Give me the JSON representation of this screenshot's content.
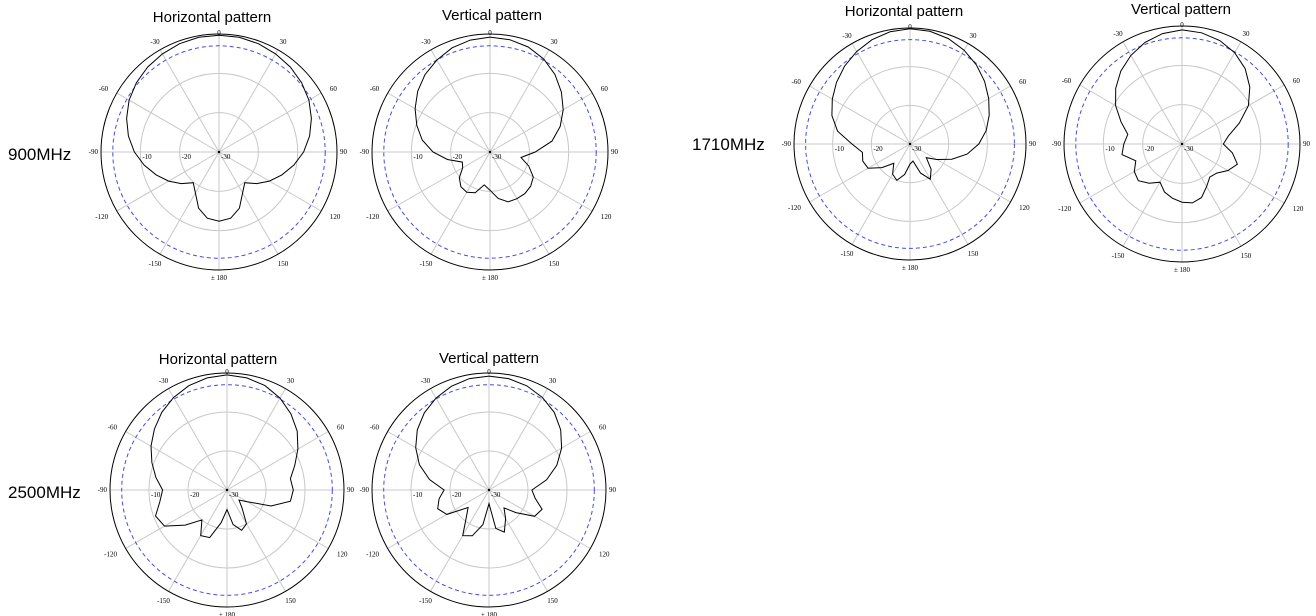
{
  "ring_labels": [
    "-10",
    "-20",
    "-30"
  ],
  "angle_labels": [
    {
      "angle": 0,
      "text": "0"
    },
    {
      "angle": 30,
      "text": "30"
    },
    {
      "angle": 60,
      "text": "60"
    },
    {
      "angle": 90,
      "text": "90"
    },
    {
      "angle": 120,
      "text": "120"
    },
    {
      "angle": 150,
      "text": "150"
    },
    {
      "angle": 180,
      "text": "± 180"
    },
    {
      "angle": -150,
      "text": "-150"
    },
    {
      "angle": -120,
      "text": "-120"
    },
    {
      "angle": -90,
      "text": "-90"
    },
    {
      "angle": -60,
      "text": "-60"
    },
    {
      "angle": -30,
      "text": "-30"
    }
  ],
  "colors": {
    "reference_circle": "#4a4ae6",
    "trace": "#000000",
    "grid": "#c8c8c8"
  },
  "chart_data": [
    {
      "type": "polar-line",
      "frequency": "900MHz",
      "title": "Horizontal pattern",
      "r_unit": "dB",
      "r_range": [
        -30,
        0
      ],
      "reference_level_db": -3,
      "pattern_points": [
        [
          0,
          -0.3
        ],
        [
          10,
          -0.4
        ],
        [
          20,
          -0.7
        ],
        [
          30,
          -1.2
        ],
        [
          40,
          -1.8
        ],
        [
          50,
          -2.6
        ],
        [
          60,
          -3.6
        ],
        [
          70,
          -5.0
        ],
        [
          80,
          -6.6
        ],
        [
          90,
          -8.5
        ],
        [
          100,
          -10.7
        ],
        [
          110,
          -13.0
        ],
        [
          120,
          -15.2
        ],
        [
          130,
          -17.5
        ],
        [
          140,
          -19.8
        ],
        [
          150,
          -18.0
        ],
        [
          160,
          -14.8
        ],
        [
          170,
          -12.9
        ],
        [
          180,
          -12.4
        ],
        [
          190,
          -12.9
        ],
        [
          200,
          -14.8
        ],
        [
          210,
          -18.0
        ],
        [
          220,
          -19.8
        ],
        [
          230,
          -17.5
        ],
        [
          240,
          -15.2
        ],
        [
          250,
          -13.0
        ],
        [
          260,
          -10.7
        ],
        [
          270,
          -8.5
        ],
        [
          280,
          -6.6
        ],
        [
          290,
          -5.0
        ],
        [
          300,
          -3.6
        ],
        [
          310,
          -2.6
        ],
        [
          320,
          -1.8
        ],
        [
          330,
          -1.2
        ],
        [
          340,
          -0.7
        ],
        [
          350,
          -0.4
        ]
      ]
    },
    {
      "type": "polar-line",
      "frequency": "900MHz",
      "title": "Vertical pattern",
      "r_unit": "dB",
      "r_range": [
        -30,
        0
      ],
      "reference_level_db": -3,
      "pattern_points": [
        [
          0,
          -0.8
        ],
        [
          10,
          -1.0
        ],
        [
          20,
          -1.6
        ],
        [
          30,
          -2.7
        ],
        [
          40,
          -4.3
        ],
        [
          50,
          -6.3
        ],
        [
          60,
          -8.5
        ],
        [
          70,
          -11.0
        ],
        [
          80,
          -14.0
        ],
        [
          90,
          -18.5
        ],
        [
          100,
          -22.0
        ],
        [
          110,
          -19.5
        ],
        [
          120,
          -17.3
        ],
        [
          130,
          -16.5
        ],
        [
          140,
          -16.2
        ],
        [
          150,
          -16.3
        ],
        [
          160,
          -16.5
        ],
        [
          170,
          -18.0
        ],
        [
          180,
          -20.3
        ],
        [
          190,
          -21.5
        ],
        [
          200,
          -19.0
        ],
        [
          210,
          -18.2
        ],
        [
          220,
          -18.5
        ],
        [
          230,
          -19.8
        ],
        [
          240,
          -22.0
        ],
        [
          250,
          -22.5
        ],
        [
          260,
          -19.0
        ],
        [
          270,
          -15.5
        ],
        [
          280,
          -12.5
        ],
        [
          290,
          -10.2
        ],
        [
          300,
          -8.0
        ],
        [
          310,
          -6.0
        ],
        [
          320,
          -4.3
        ],
        [
          330,
          -3.0
        ],
        [
          340,
          -1.8
        ],
        [
          350,
          -1.1
        ]
      ]
    },
    {
      "type": "polar-line",
      "frequency": "1710MHz",
      "title": "Horizontal pattern",
      "r_unit": "dB",
      "r_range": [
        -30,
        0
      ],
      "reference_level_db": -3,
      "pattern_points": [
        [
          0,
          -0.2
        ],
        [
          10,
          -0.4
        ],
        [
          20,
          -1.0
        ],
        [
          30,
          -2.0
        ],
        [
          40,
          -3.3
        ],
        [
          50,
          -4.8
        ],
        [
          60,
          -6.5
        ],
        [
          70,
          -8.2
        ],
        [
          80,
          -10.0
        ],
        [
          90,
          -12.2
        ],
        [
          100,
          -15.0
        ],
        [
          110,
          -18.5
        ],
        [
          120,
          -22.0
        ],
        [
          130,
          -24.5
        ],
        [
          140,
          -21.5
        ],
        [
          150,
          -19.5
        ],
        [
          160,
          -22.0
        ],
        [
          170,
          -25.5
        ],
        [
          180,
          -24.8
        ],
        [
          190,
          -22.0
        ],
        [
          200,
          -20.0
        ],
        [
          210,
          -21.0
        ],
        [
          220,
          -23.5
        ],
        [
          230,
          -20.5
        ],
        [
          240,
          -17.5
        ],
        [
          250,
          -17.0
        ],
        [
          260,
          -17.5
        ],
        [
          270,
          -15.0
        ],
        [
          280,
          -11.0
        ],
        [
          290,
          -8.5
        ],
        [
          300,
          -6.8
        ],
        [
          310,
          -5.2
        ],
        [
          320,
          -3.7
        ],
        [
          330,
          -2.4
        ],
        [
          340,
          -1.3
        ],
        [
          350,
          -0.5
        ]
      ]
    },
    {
      "type": "polar-line",
      "frequency": "1710MHz",
      "title": "Vertical pattern",
      "r_unit": "dB",
      "r_range": [
        -30,
        0
      ],
      "reference_level_db": -3,
      "pattern_points": [
        [
          0,
          -1.0
        ],
        [
          10,
          -1.3
        ],
        [
          20,
          -2.0
        ],
        [
          30,
          -3.2
        ],
        [
          40,
          -5.0
        ],
        [
          50,
          -7.5
        ],
        [
          60,
          -10.5
        ],
        [
          70,
          -14.5
        ],
        [
          80,
          -18.0
        ],
        [
          90,
          -19.5
        ],
        [
          100,
          -17.0
        ],
        [
          110,
          -15.0
        ],
        [
          120,
          -16.5
        ],
        [
          130,
          -18.5
        ],
        [
          140,
          -19.0
        ],
        [
          150,
          -17.5
        ],
        [
          160,
          -15.5
        ],
        [
          170,
          -14.8
        ],
        [
          180,
          -15.2
        ],
        [
          190,
          -16.0
        ],
        [
          200,
          -17.0
        ],
        [
          210,
          -18.8
        ],
        [
          220,
          -17.0
        ],
        [
          230,
          -15.5
        ],
        [
          240,
          -16.0
        ],
        [
          250,
          -17.5
        ],
        [
          260,
          -14.5
        ],
        [
          270,
          -15.2
        ],
        [
          280,
          -16.0
        ],
        [
          290,
          -13.5
        ],
        [
          300,
          -10.5
        ],
        [
          310,
          -8.0
        ],
        [
          320,
          -5.8
        ],
        [
          330,
          -4.0
        ],
        [
          340,
          -2.5
        ],
        [
          350,
          -1.5
        ]
      ]
    },
    {
      "type": "polar-line",
      "frequency": "2500MHz",
      "title": "Horizontal pattern",
      "r_unit": "dB",
      "r_range": [
        -30,
        0
      ],
      "reference_level_db": -3,
      "pattern_points": [
        [
          0,
          -0.5
        ],
        [
          10,
          -0.8
        ],
        [
          20,
          -1.5
        ],
        [
          30,
          -2.8
        ],
        [
          40,
          -4.5
        ],
        [
          50,
          -6.5
        ],
        [
          60,
          -9.0
        ],
        [
          70,
          -11.5
        ],
        [
          80,
          -13.5
        ],
        [
          90,
          -13.0
        ],
        [
          100,
          -13.5
        ],
        [
          110,
          -18.0
        ],
        [
          120,
          -24.0
        ],
        [
          130,
          -26.0
        ],
        [
          140,
          -24.0
        ],
        [
          150,
          -20.0
        ],
        [
          160,
          -19.0
        ],
        [
          170,
          -21.0
        ],
        [
          180,
          -25.0
        ],
        [
          190,
          -21.5
        ],
        [
          200,
          -17.0
        ],
        [
          210,
          -16.5
        ],
        [
          220,
          -20.0
        ],
        [
          230,
          -16.0
        ],
        [
          240,
          -11.5
        ],
        [
          250,
          -10.5
        ],
        [
          260,
          -12.5
        ],
        [
          270,
          -13.5
        ],
        [
          280,
          -11.5
        ],
        [
          290,
          -9.5
        ],
        [
          300,
          -7.5
        ],
        [
          310,
          -5.7
        ],
        [
          320,
          -4.0
        ],
        [
          330,
          -2.6
        ],
        [
          340,
          -1.5
        ],
        [
          350,
          -0.8
        ]
      ]
    },
    {
      "type": "polar-line",
      "frequency": "2500MHz",
      "title": "Vertical pattern",
      "r_unit": "dB",
      "r_range": [
        -30,
        0
      ],
      "reference_level_db": -3,
      "pattern_points": [
        [
          0,
          -0.8
        ],
        [
          10,
          -1.0
        ],
        [
          20,
          -1.6
        ],
        [
          30,
          -2.6
        ],
        [
          40,
          -4.0
        ],
        [
          50,
          -6.0
        ],
        [
          60,
          -8.5
        ],
        [
          70,
          -11.5
        ],
        [
          80,
          -15.0
        ],
        [
          90,
          -19.0
        ],
        [
          100,
          -18.0
        ],
        [
          110,
          -15.5
        ],
        [
          120,
          -16.5
        ],
        [
          130,
          -21.0
        ],
        [
          140,
          -24.0
        ],
        [
          150,
          -21.5
        ],
        [
          160,
          -18.5
        ],
        [
          170,
          -20.0
        ],
        [
          180,
          -26.5
        ],
        [
          190,
          -21.0
        ],
        [
          200,
          -17.5
        ],
        [
          210,
          -16.5
        ],
        [
          220,
          -21.0
        ],
        [
          230,
          -23.0
        ],
        [
          240,
          -17.5
        ],
        [
          250,
          -16.0
        ],
        [
          260,
          -17.0
        ],
        [
          270,
          -18.5
        ],
        [
          280,
          -14.5
        ],
        [
          290,
          -11.0
        ],
        [
          300,
          -8.3
        ],
        [
          310,
          -6.0
        ],
        [
          320,
          -4.2
        ],
        [
          330,
          -2.8
        ],
        [
          340,
          -1.7
        ],
        [
          350,
          -1.0
        ]
      ]
    }
  ]
}
